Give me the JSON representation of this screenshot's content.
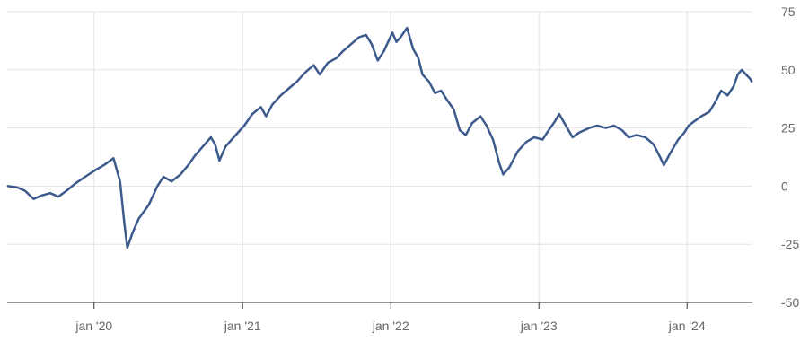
{
  "chart_data": {
    "type": "line",
    "title": "",
    "xlabel": "",
    "ylabel": "",
    "x_range": [
      "2019-06-01",
      "2024-06-10"
    ],
    "ylim": [
      -50,
      75
    ],
    "y_ticks": [
      75,
      50,
      25,
      0,
      -25,
      -50
    ],
    "y_tick_labels": [
      "75",
      "50",
      "25",
      "0",
      "-25",
      "-50"
    ],
    "x_ticks": [
      "2020-01-01",
      "2021-01-01",
      "2022-01-01",
      "2023-01-01",
      "2024-01-01"
    ],
    "x_tick_labels": [
      "jan '20",
      "jan '21",
      "jan '22",
      "jan '23",
      "jan '24"
    ],
    "grid": true,
    "line_color": "#3d5a8c",
    "series": [
      {
        "points": [
          [
            "2019-06-03",
            0
          ],
          [
            "2019-06-25",
            -0.5
          ],
          [
            "2019-07-15",
            -2
          ],
          [
            "2019-08-05",
            -5.5
          ],
          [
            "2019-08-25",
            -4
          ],
          [
            "2019-09-15",
            -3
          ],
          [
            "2019-10-05",
            -4.5
          ],
          [
            "2019-10-25",
            -2
          ],
          [
            "2019-11-15",
            1
          ],
          [
            "2019-12-10",
            4
          ],
          [
            "2020-01-05",
            7
          ],
          [
            "2020-01-25",
            9
          ],
          [
            "2020-02-10",
            11
          ],
          [
            "2020-02-18",
            12
          ],
          [
            "2020-03-05",
            2
          ],
          [
            "2020-03-15",
            -15
          ],
          [
            "2020-03-23",
            -26.5
          ],
          [
            "2020-04-05",
            -20
          ],
          [
            "2020-04-20",
            -14
          ],
          [
            "2020-05-15",
            -8
          ],
          [
            "2020-06-05",
            0
          ],
          [
            "2020-06-20",
            4
          ],
          [
            "2020-07-10",
            2
          ],
          [
            "2020-08-01",
            5
          ],
          [
            "2020-08-20",
            9
          ],
          [
            "2020-09-05",
            13
          ],
          [
            "2020-09-25",
            17
          ],
          [
            "2020-10-15",
            21
          ],
          [
            "2020-10-25",
            18
          ],
          [
            "2020-11-05",
            11
          ],
          [
            "2020-11-20",
            17
          ],
          [
            "2020-12-10",
            21
          ],
          [
            "2021-01-05",
            26
          ],
          [
            "2021-01-25",
            31
          ],
          [
            "2021-02-15",
            34
          ],
          [
            "2021-02-28",
            30
          ],
          [
            "2021-03-15",
            35
          ],
          [
            "2021-04-05",
            39
          ],
          [
            "2021-04-25",
            42
          ],
          [
            "2021-05-15",
            45
          ],
          [
            "2021-06-05",
            49
          ],
          [
            "2021-06-25",
            52
          ],
          [
            "2021-07-10",
            48
          ],
          [
            "2021-07-30",
            53
          ],
          [
            "2021-08-20",
            55
          ],
          [
            "2021-09-05",
            58
          ],
          [
            "2021-09-25",
            61
          ],
          [
            "2021-10-15",
            64
          ],
          [
            "2021-11-01",
            65
          ],
          [
            "2021-11-15",
            61
          ],
          [
            "2021-11-30",
            54
          ],
          [
            "2021-12-15",
            58
          ],
          [
            "2022-01-05",
            66
          ],
          [
            "2022-01-15",
            62
          ],
          [
            "2022-01-25",
            64
          ],
          [
            "2022-02-10",
            68
          ],
          [
            "2022-02-25",
            59
          ],
          [
            "2022-03-10",
            55
          ],
          [
            "2022-03-20",
            48
          ],
          [
            "2022-04-05",
            45
          ],
          [
            "2022-04-20",
            40
          ],
          [
            "2022-05-05",
            41
          ],
          [
            "2022-05-20",
            37
          ],
          [
            "2022-06-05",
            33
          ],
          [
            "2022-06-20",
            24
          ],
          [
            "2022-07-05",
            22
          ],
          [
            "2022-07-20",
            27
          ],
          [
            "2022-08-10",
            30
          ],
          [
            "2022-08-25",
            26
          ],
          [
            "2022-09-10",
            20
          ],
          [
            "2022-09-25",
            10
          ],
          [
            "2022-10-05",
            5
          ],
          [
            "2022-10-20",
            8
          ],
          [
            "2022-11-10",
            15
          ],
          [
            "2022-12-01",
            19
          ],
          [
            "2022-12-20",
            21
          ],
          [
            "2023-01-10",
            20
          ],
          [
            "2023-01-25",
            24
          ],
          [
            "2023-02-10",
            28
          ],
          [
            "2023-02-20",
            31
          ],
          [
            "2023-03-05",
            27
          ],
          [
            "2023-03-15",
            24
          ],
          [
            "2023-03-25",
            21
          ],
          [
            "2023-04-10",
            23
          ],
          [
            "2023-05-05",
            25
          ],
          [
            "2023-05-25",
            26
          ],
          [
            "2023-06-15",
            25
          ],
          [
            "2023-07-05",
            26
          ],
          [
            "2023-07-25",
            24
          ],
          [
            "2023-08-10",
            21
          ],
          [
            "2023-08-30",
            22
          ],
          [
            "2023-09-20",
            21
          ],
          [
            "2023-10-10",
            18
          ],
          [
            "2023-10-25",
            13
          ],
          [
            "2023-11-05",
            9
          ],
          [
            "2023-11-20",
            14
          ],
          [
            "2023-12-10",
            20
          ],
          [
            "2023-12-25",
            23
          ],
          [
            "2024-01-05",
            26
          ],
          [
            "2024-01-20",
            28
          ],
          [
            "2024-02-05",
            30
          ],
          [
            "2024-02-25",
            32
          ],
          [
            "2024-03-10",
            36
          ],
          [
            "2024-03-25",
            41
          ],
          [
            "2024-04-10",
            39
          ],
          [
            "2024-04-25",
            43
          ],
          [
            "2024-05-05",
            48
          ],
          [
            "2024-05-15",
            50
          ],
          [
            "2024-05-25",
            48
          ],
          [
            "2024-06-05",
            46
          ],
          [
            "2024-06-08",
            45
          ]
        ]
      }
    ]
  }
}
